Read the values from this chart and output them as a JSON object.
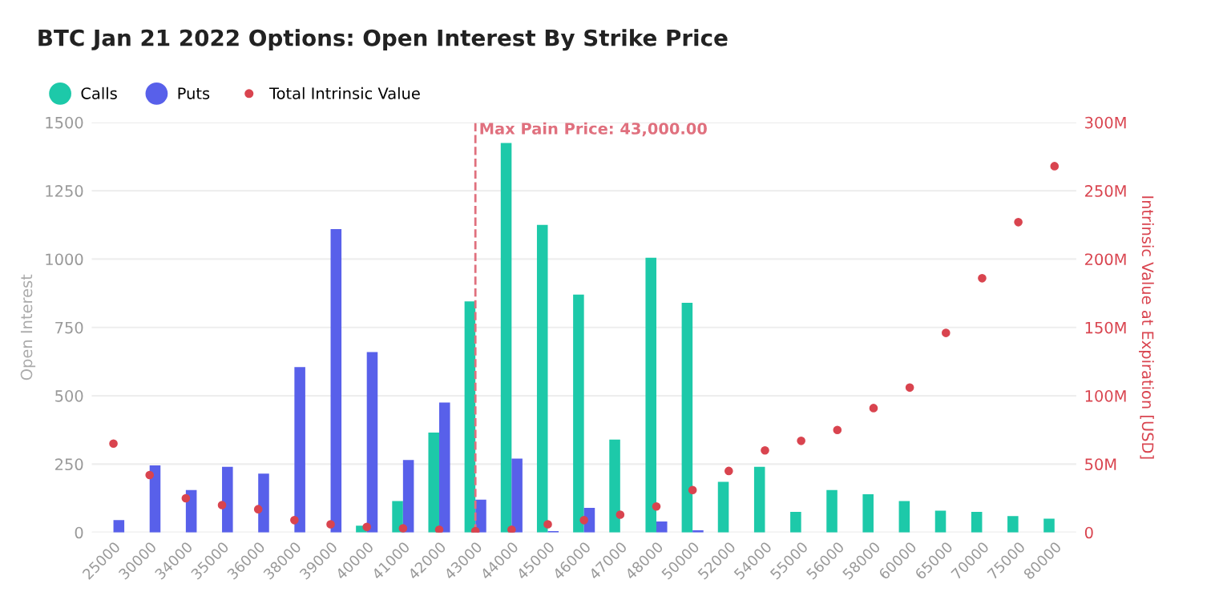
{
  "chart_data": {
    "type": "bar",
    "title": "BTC Jan 21 2022 Options: Open Interest By Strike Price",
    "ylabel": "Open Interest",
    "y2label": "Intrinsic Value at Expiration [USD]",
    "categories": [
      "25000",
      "30000",
      "34000",
      "35000",
      "36000",
      "38000",
      "39000",
      "40000",
      "41000",
      "42000",
      "43000",
      "44000",
      "45000",
      "46000",
      "47000",
      "48000",
      "50000",
      "52000",
      "54000",
      "55000",
      "56000",
      "58000",
      "60000",
      "65000",
      "70000",
      "75000",
      "80000"
    ],
    "series": [
      {
        "name": "Calls",
        "color": "#1dc9a9",
        "values": [
          null,
          null,
          null,
          null,
          null,
          null,
          null,
          25,
          115,
          365,
          845,
          1425,
          1125,
          870,
          340,
          1005,
          840,
          185,
          240,
          75,
          155,
          140,
          115,
          80,
          75,
          60,
          50
        ]
      },
      {
        "name": "Puts",
        "color": "#5860ea",
        "values": [
          45,
          245,
          155,
          240,
          215,
          605,
          1110,
          660,
          265,
          475,
          120,
          270,
          5,
          90,
          null,
          40,
          8,
          null,
          null,
          null,
          null,
          null,
          null,
          null,
          null,
          null,
          null
        ]
      },
      {
        "name": "Total Intrinsic Value",
        "type": "scatter",
        "axis": "y2",
        "color": "#d9444f",
        "values": [
          65000000,
          42000000,
          25000000,
          20000000,
          17000000,
          9000000,
          6000000,
          4000000,
          3000000,
          2000000,
          1000000,
          2000000,
          6000000,
          9000000,
          13000000,
          19000000,
          31000000,
          45000000,
          60000000,
          67000000,
          75000000,
          91000000,
          106000000,
          146000000,
          186000000,
          227000000,
          268000000
        ]
      }
    ],
    "ylim": [
      0,
      1500
    ],
    "yticks": [
      0,
      250,
      500,
      750,
      1000,
      1250,
      1500
    ],
    "y2lim": [
      0,
      300000000
    ],
    "y2ticks": [
      0,
      {
        "value": 50000000,
        "label": "50M"
      },
      {
        "value": 100000000,
        "label": "100M"
      },
      {
        "value": 150000000,
        "label": "150M"
      },
      {
        "value": 200000000,
        "label": "200M"
      },
      {
        "value": 250000000,
        "label": "250M"
      },
      {
        "value": 300000000,
        "label": "300M"
      }
    ],
    "ref_lines": [
      {
        "axis": "x",
        "value": "43000",
        "label": "Max Pain Price: 43,000.00",
        "color": "#e0707e",
        "line_style": "dashed"
      }
    ],
    "grid": "y",
    "legend": "top left",
    "marker": "circle"
  }
}
